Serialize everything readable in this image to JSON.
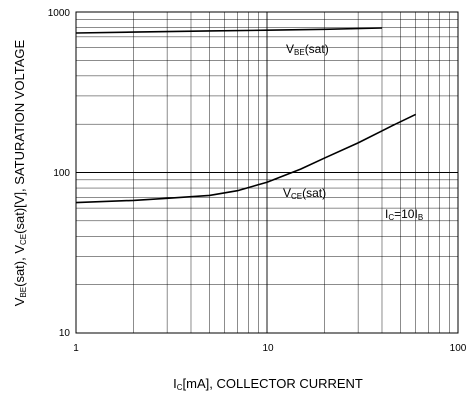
{
  "chart_data": {
    "type": "line",
    "x_scale": "log",
    "y_scale": "log",
    "xlim": [
      1,
      100
    ],
    "ylim": [
      10,
      1000
    ],
    "grid": true,
    "x_ticks": [
      "1",
      "10",
      "100"
    ],
    "y_ticks": [
      "10",
      "100",
      "1000"
    ],
    "xlabel": {
      "main": "I",
      "sub": "C",
      "rest": "[mA], COLLECTOR CURRENT"
    },
    "ylabel": {
      "p1": "V",
      "s1": "BE",
      "p2": "(sat), V",
      "s2": "CE",
      "p3": "(sat)[V], SATURATION VOLTAGE"
    },
    "series": [
      {
        "name": {
          "main": "V",
          "sub": "BE",
          "rest": "(sat)"
        },
        "color": "#000000",
        "x": [
          1,
          2,
          5,
          10,
          20,
          40
        ],
        "y": [
          740,
          750,
          762,
          770,
          780,
          795
        ]
      },
      {
        "name": {
          "main": "V",
          "sub": "CE",
          "rest": "(sat)"
        },
        "color": "#000000",
        "x": [
          1,
          2,
          3,
          5,
          7,
          10,
          15,
          20,
          30,
          45,
          60
        ],
        "y": [
          65,
          67,
          69,
          72,
          77,
          87,
          105,
          123,
          153,
          195,
          230
        ]
      }
    ],
    "annotation": {
      "p1": "I",
      "s1": "C",
      "p2": "=10I",
      "s2": "B"
    }
  }
}
